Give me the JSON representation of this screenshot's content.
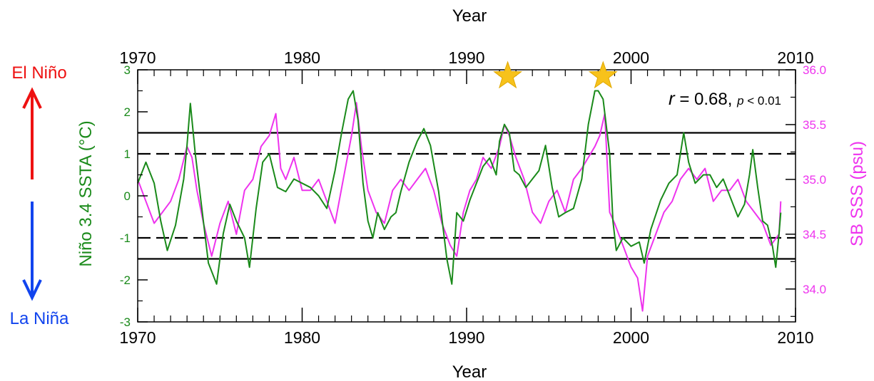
{
  "chart_data": {
    "type": "line",
    "xlabel_top": "Year",
    "xlabel_bottom": "Year",
    "ylabel_left": "Niño 3.4 SSTA (°C)",
    "ylabel_right": "SB SSS (psu)",
    "xlim": [
      1970,
      2010
    ],
    "ylim_left": [
      -3,
      3
    ],
    "ylim_right": [
      33.7,
      36.0
    ],
    "x_ticks": [
      "1970",
      "1980",
      "1990",
      "2000",
      "2010"
    ],
    "y_left_ticks": [
      "-3",
      "-2",
      "-1",
      "0",
      "1",
      "2",
      "3"
    ],
    "y_right_ticks": [
      "34.0",
      "34.5",
      "35.0",
      "35.5",
      "36.0"
    ],
    "annotation_r": "r",
    "annotation_eq": " = 0.68, ",
    "annotation_p": "p",
    "annotation_p_rest": " < 0.01",
    "el_nino": "El Niño",
    "la_nina": "La Niña",
    "thresholds": [
      {
        "value": 1.5,
        "style": "solid"
      },
      {
        "value": 1.0,
        "style": "dashed"
      },
      {
        "value": -1.0,
        "style": "dashed"
      },
      {
        "value": -1.5,
        "style": "solid"
      }
    ],
    "stars": [
      {
        "x": 1992.5,
        "y": 2.85
      },
      {
        "x": 1998.3,
        "y": 2.85
      }
    ],
    "colors": {
      "nino": "#1a8a1a",
      "sss": "#ee33ee",
      "el_nino": "#ee1111",
      "la_nina": "#1144ee",
      "star": "#f7c21b"
    },
    "series": [
      {
        "name": "Niño 3.4 SSTA",
        "axis": "left",
        "x": [
          1970.0,
          1970.5,
          1971.0,
          1971.4,
          1971.8,
          1972.3,
          1972.8,
          1973.0,
          1973.2,
          1973.5,
          1973.9,
          1974.3,
          1974.8,
          1975.2,
          1975.6,
          1976.0,
          1976.5,
          1976.8,
          1977.2,
          1977.6,
          1978.0,
          1978.5,
          1979.0,
          1979.5,
          1980.0,
          1980.5,
          1981.0,
          1981.5,
          1982.0,
          1982.4,
          1982.8,
          1983.1,
          1983.4,
          1983.7,
          1984.0,
          1984.3,
          1984.6,
          1985.0,
          1985.4,
          1985.7,
          1986.0,
          1986.5,
          1987.0,
          1987.4,
          1987.8,
          1988.3,
          1988.8,
          1989.1,
          1989.4,
          1989.8,
          1990.2,
          1990.6,
          1991.0,
          1991.4,
          1991.8,
          1992.0,
          1992.3,
          1992.6,
          1992.9,
          1993.2,
          1993.6,
          1994.0,
          1994.4,
          1994.8,
          1995.2,
          1995.6,
          1996.0,
          1996.5,
          1997.0,
          1997.4,
          1997.8,
          1998.0,
          1998.3,
          1998.7,
          1998.9,
          1999.1,
          1999.5,
          2000.0,
          2000.5,
          2000.8,
          2001.2,
          2001.8,
          2002.3,
          2002.8,
          2003.2,
          2003.5,
          2003.9,
          2004.4,
          2004.8,
          2005.2,
          2005.6,
          2006.0,
          2006.5,
          2006.9,
          2007.2,
          2007.4,
          2007.7,
          2008.0,
          2008.3,
          2008.6,
          2008.8,
          2009.0,
          2009.1
        ],
        "values": [
          0.3,
          0.8,
          0.3,
          -0.6,
          -1.3,
          -0.7,
          0.4,
          1.2,
          2.2,
          1.0,
          -0.3,
          -1.6,
          -2.1,
          -0.9,
          -0.2,
          -0.6,
          -1.0,
          -1.7,
          -0.3,
          0.8,
          1.0,
          0.2,
          0.1,
          0.4,
          0.3,
          0.2,
          0.0,
          -0.3,
          0.6,
          1.5,
          2.3,
          2.5,
          1.8,
          0.3,
          -0.6,
          -1.0,
          -0.4,
          -0.8,
          -0.5,
          -0.4,
          0.1,
          0.8,
          1.3,
          1.6,
          1.2,
          0.1,
          -1.5,
          -2.1,
          -0.4,
          -0.6,
          -0.1,
          0.3,
          0.7,
          0.9,
          0.5,
          1.3,
          1.7,
          1.5,
          0.6,
          0.5,
          0.2,
          0.4,
          0.6,
          1.2,
          0.2,
          -0.5,
          -0.4,
          -0.3,
          0.4,
          1.7,
          2.5,
          2.5,
          2.3,
          1.0,
          -0.6,
          -1.3,
          -1.0,
          -1.2,
          -1.1,
          -1.6,
          -0.8,
          -0.1,
          0.3,
          0.5,
          1.5,
          0.8,
          0.3,
          0.5,
          0.5,
          0.2,
          0.4,
          0.0,
          -0.5,
          -0.2,
          0.5,
          1.1,
          0.2,
          -0.6,
          -0.7,
          -1.2,
          -1.7,
          -0.9,
          -0.4
        ]
      },
      {
        "name": "SB SSS",
        "axis": "right",
        "x": [
          1970.0,
          1970.5,
          1971.0,
          1971.5,
          1972.0,
          1972.5,
          1973.0,
          1973.3,
          1973.6,
          1974.0,
          1974.5,
          1975.0,
          1975.5,
          1976.0,
          1976.5,
          1977.0,
          1977.5,
          1978.0,
          1978.4,
          1978.7,
          1979.0,
          1979.5,
          1980.0,
          1980.5,
          1981.0,
          1981.5,
          1982.0,
          1982.5,
          1983.0,
          1983.3,
          1983.6,
          1984.0,
          1984.5,
          1985.0,
          1985.5,
          1986.0,
          1986.5,
          1987.0,
          1987.5,
          1988.0,
          1988.5,
          1989.0,
          1989.4,
          1989.8,
          1990.2,
          1990.6,
          1991.0,
          1991.5,
          1992.0,
          1992.3,
          1992.6,
          1993.0,
          1993.5,
          1994.0,
          1994.5,
          1995.0,
          1995.5,
          1996.0,
          1996.5,
          1997.0,
          1997.4,
          1997.8,
          1998.1,
          1998.4,
          1998.7,
          1999.0,
          1999.5,
          2000.0,
          2000.4,
          2000.7,
          2001.0,
          2001.5,
          2002.0,
          2002.5,
          2003.0,
          2003.5,
          2004.0,
          2004.5,
          2005.0,
          2005.5,
          2006.0,
          2006.5,
          2007.0,
          2007.5,
          2008.0,
          2008.5,
          2009.0,
          2009.1
        ],
        "values": [
          35.0,
          34.8,
          34.6,
          34.7,
          34.8,
          35.0,
          35.3,
          35.2,
          34.9,
          34.6,
          34.3,
          34.6,
          34.8,
          34.5,
          34.9,
          35.0,
          35.3,
          35.4,
          35.6,
          35.1,
          35.0,
          35.2,
          34.9,
          34.9,
          35.0,
          34.8,
          34.6,
          35.0,
          35.4,
          35.7,
          35.3,
          34.9,
          34.7,
          34.6,
          34.9,
          35.0,
          34.9,
          35.0,
          35.1,
          34.9,
          34.6,
          34.4,
          34.3,
          34.7,
          34.9,
          35.0,
          35.2,
          35.1,
          35.3,
          35.5,
          35.4,
          35.2,
          35.0,
          34.7,
          34.6,
          34.8,
          34.9,
          34.7,
          35.0,
          35.1,
          35.2,
          35.3,
          35.4,
          35.6,
          34.7,
          34.6,
          34.4,
          34.2,
          34.1,
          33.8,
          34.3,
          34.5,
          34.7,
          34.8,
          35.0,
          35.1,
          35.0,
          35.1,
          34.8,
          34.9,
          34.9,
          35.0,
          34.8,
          34.7,
          34.6,
          34.4,
          34.5,
          34.8
        ]
      }
    ]
  }
}
